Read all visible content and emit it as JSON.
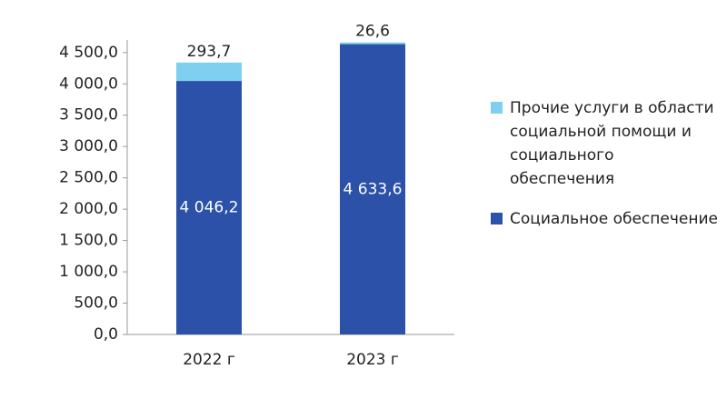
{
  "chart_data": {
    "type": "stacked-bar",
    "categories": [
      "2022 г",
      "2023 г"
    ],
    "series": [
      {
        "name": "Социальное обеспечение",
        "color": "#2b52a8",
        "values": [
          4046.2,
          4633.6
        ],
        "value_labels": [
          "4 046,2",
          "4 633,6"
        ]
      },
      {
        "name": "Прочие услуги в области социальной помощи и социального обеспечения",
        "color": "#7fd0f0",
        "values": [
          293.7,
          26.6
        ],
        "value_labels": [
          "293,7",
          "26,6"
        ]
      }
    ],
    "ylim": [
      0,
      4700
    ],
    "yticks": [
      {
        "value": 0,
        "label": "0,0"
      },
      {
        "value": 500,
        "label": "500,0"
      },
      {
        "value": 1000,
        "label": "1 000,0"
      },
      {
        "value": 1500,
        "label": "1 500,0"
      },
      {
        "value": 2000,
        "label": "2 000,0"
      },
      {
        "value": 2500,
        "label": "2 500,0"
      },
      {
        "value": 3000,
        "label": "3 000,0"
      },
      {
        "value": 3500,
        "label": "3 500,0"
      },
      {
        "value": 4000,
        "label": "4 000,0"
      },
      {
        "value": 4500,
        "label": "4 500,0"
      }
    ],
    "grid": false
  }
}
